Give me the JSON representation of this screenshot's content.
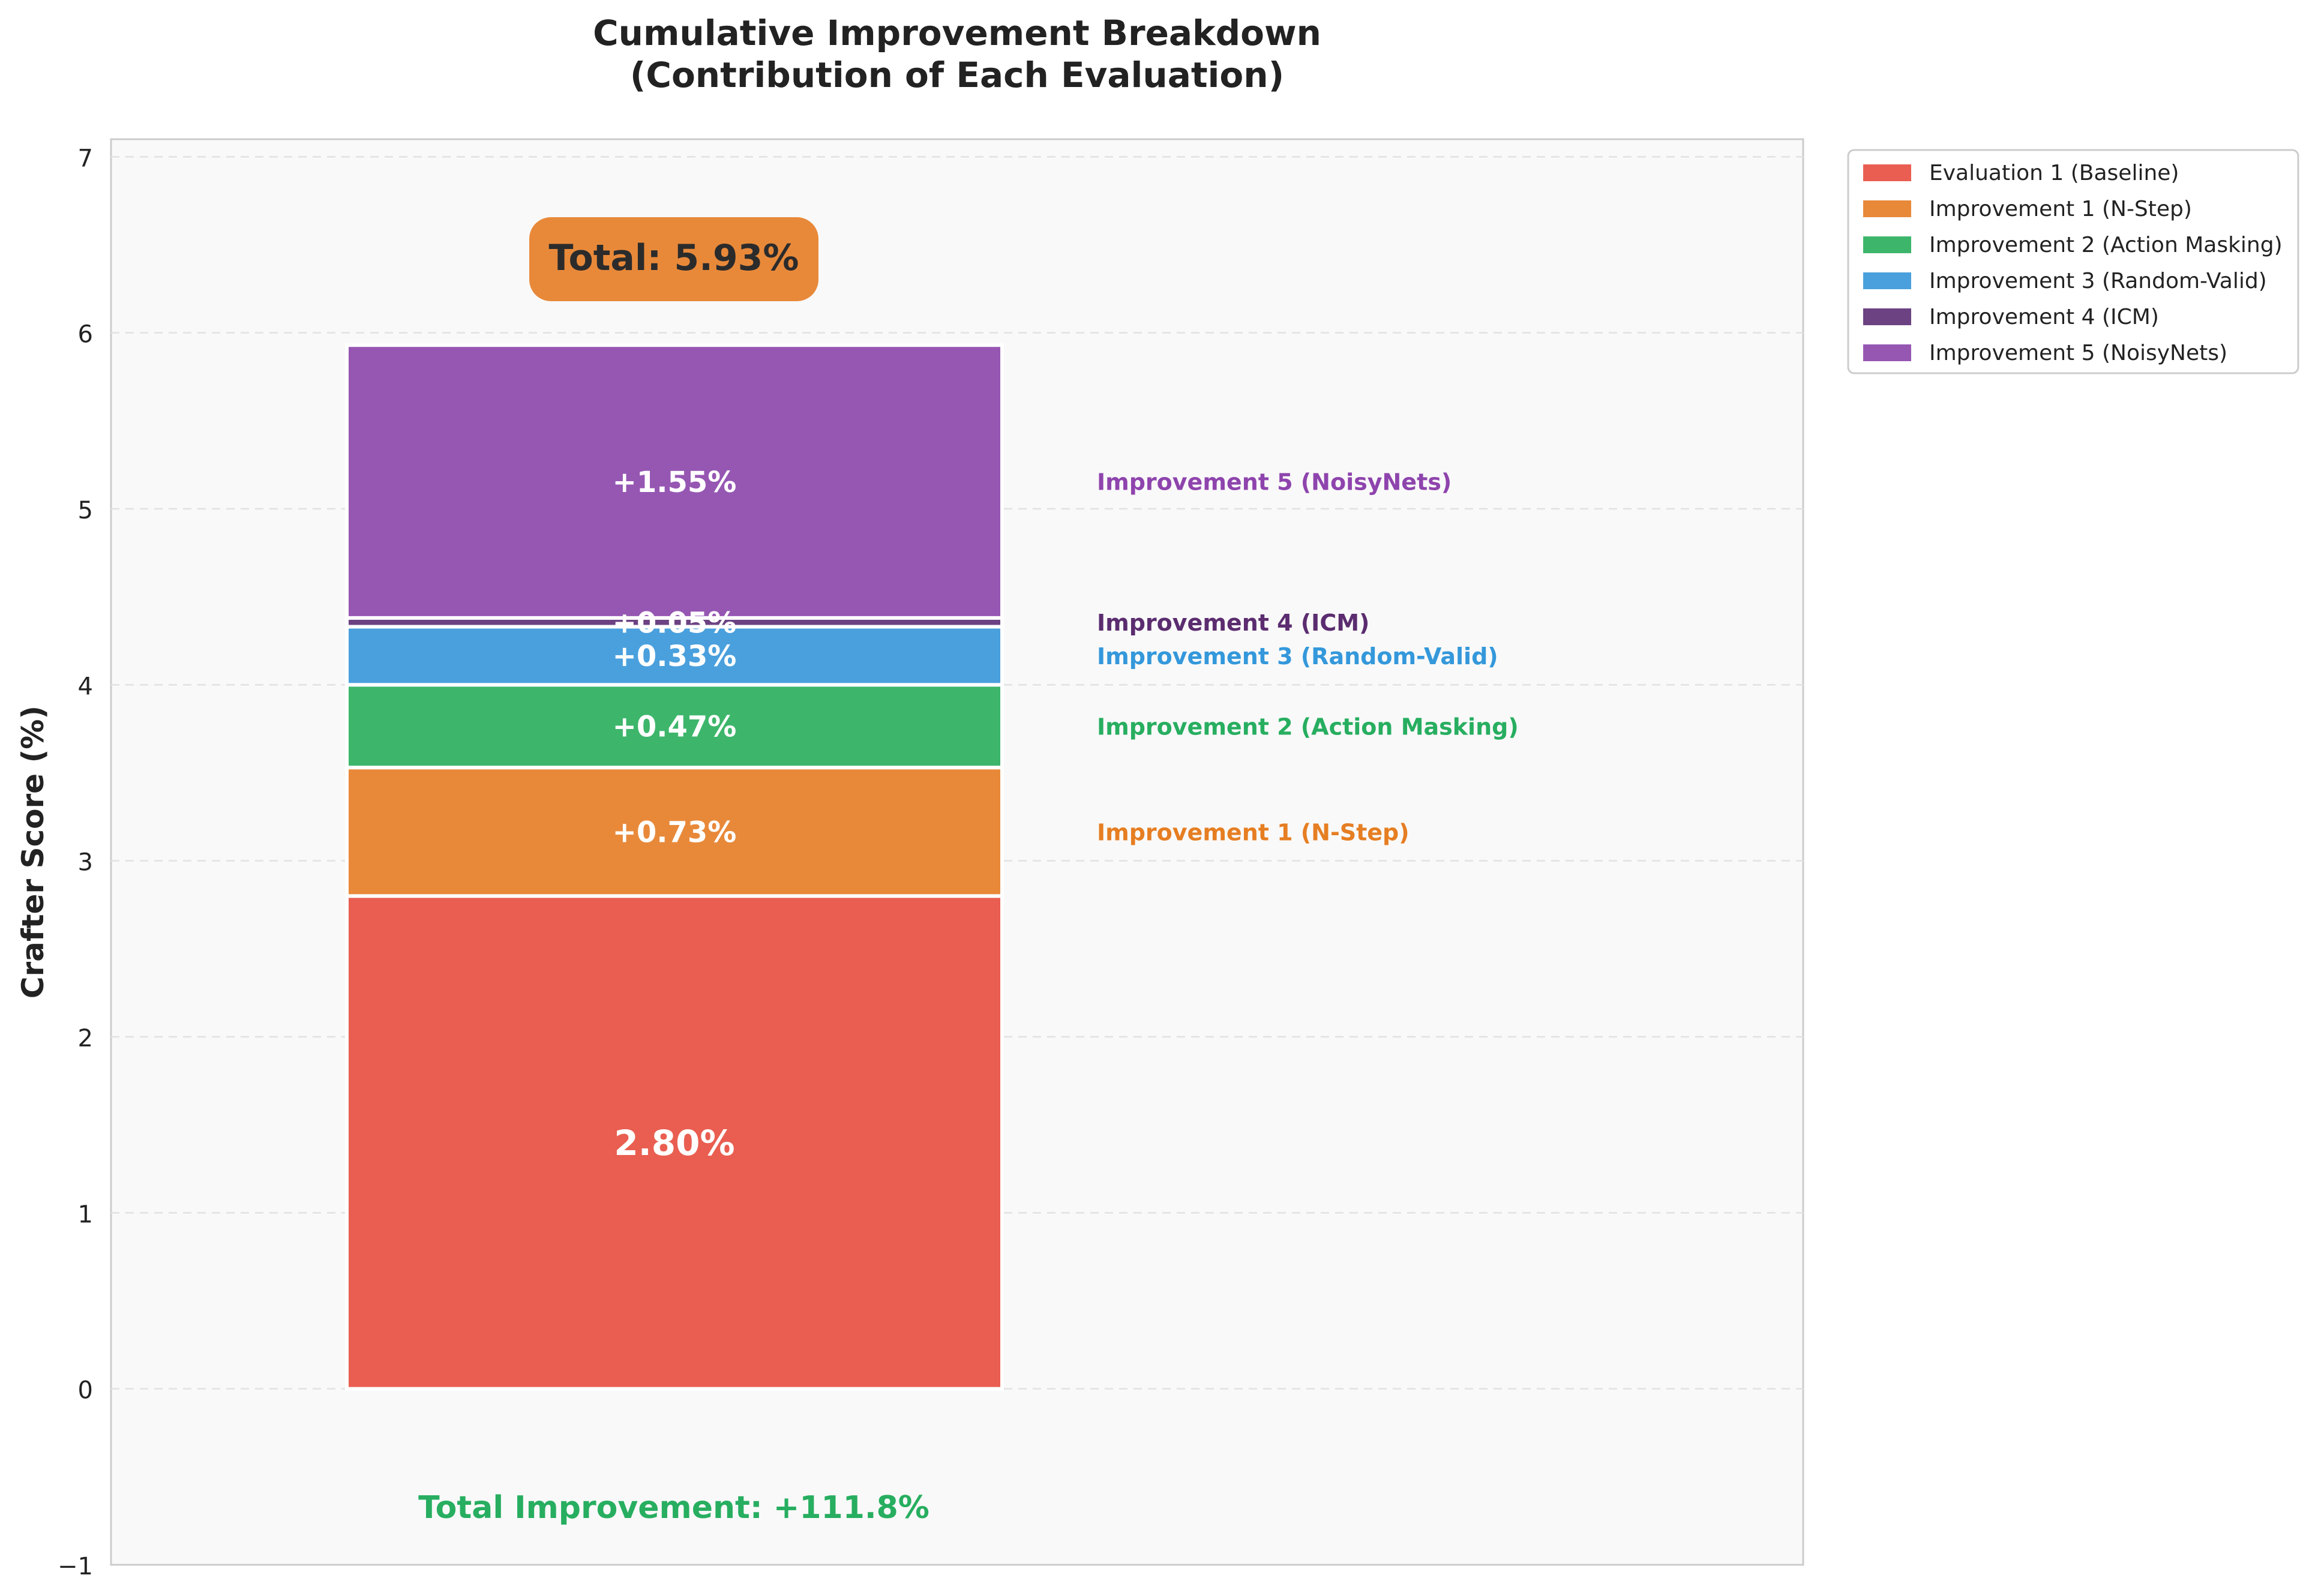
{
  "chart_data": {
    "type": "bar",
    "stacked": true,
    "title": "Cumulative Improvement Breakdown",
    "subtitle": "(Contribution of Each Evaluation)",
    "ylabel": "Crafter Score (%)",
    "xlabel": "",
    "ylim": [
      -1,
      7.1
    ],
    "yticks": [
      -1,
      0,
      1,
      2,
      3,
      4,
      5,
      6,
      7
    ],
    "ytick_labels": [
      "−1",
      "0",
      "1",
      "2",
      "3",
      "4",
      "5",
      "6",
      "7"
    ],
    "grid": true,
    "legend_position": "outside-top-right",
    "segments": [
      {
        "name": "Evaluation 1 (Baseline)",
        "value": 2.8,
        "label": "2.80%",
        "side_label": "",
        "color": "#e95e50"
      },
      {
        "name": "Improvement 1 (N-Step)",
        "value": 0.73,
        "label": "+0.73%",
        "side_label": "Improvement 1 (N-Step)",
        "color": "#e8893a",
        "side_color": "#e67e22"
      },
      {
        "name": "Improvement 2 (Action Masking)",
        "value": 0.47,
        "label": "+0.47%",
        "side_label": "Improvement 2 (Action Masking)",
        "color": "#3db66b",
        "side_color": "#27ae60"
      },
      {
        "name": "Improvement 3 (Random-Valid)",
        "value": 0.33,
        "label": "+0.33%",
        "side_label": "Improvement 3 (Random-Valid)",
        "color": "#4aa0dd",
        "side_color": "#3498db"
      },
      {
        "name": "Improvement 4 (ICM)",
        "value": 0.05,
        "label": "+0.05%",
        "side_label": "Improvement 4 (ICM)",
        "color": "#6c4283",
        "side_color": "#5b2c6f"
      },
      {
        "name": "Improvement 5 (NoisyNets)",
        "value": 1.55,
        "label": "+1.55%",
        "side_label": "Improvement 5 (NoisyNets)",
        "color": "#9657b3",
        "side_color": "#8e44ad"
      }
    ],
    "total_label": "Total: 5.93%",
    "total_box_color": "#e8893a",
    "footer_label": "Total Improvement: +111.8%",
    "footer_color": "#27ae60"
  }
}
